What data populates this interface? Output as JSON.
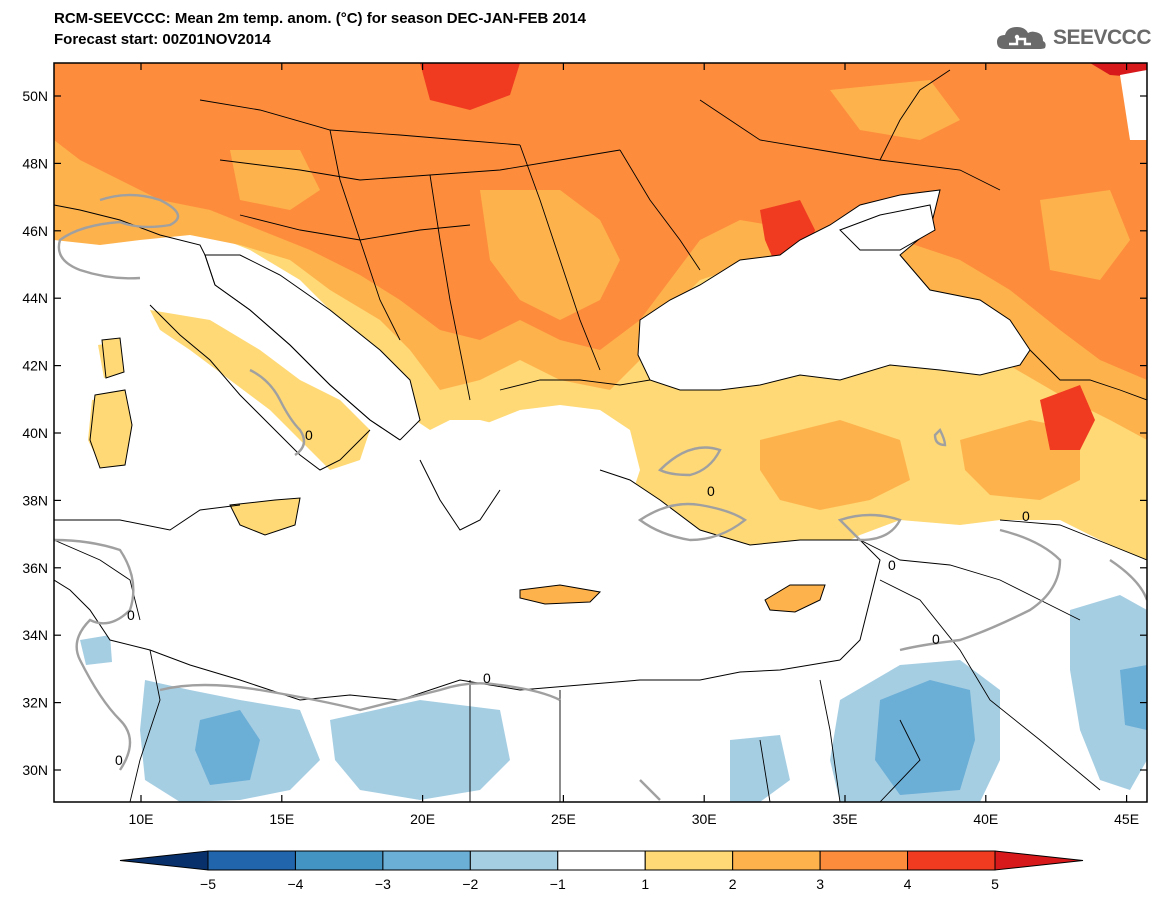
{
  "title_line1": "RCM-SEEVCCC: Mean 2m temp. anom. (°C) for season DEC-JAN-FEB 2014",
  "title_line2": "Forecast start: 00Z01NOV2014",
  "logo_text": "SEEVCCC",
  "map": {
    "lat_ticks": [
      "50N",
      "48N",
      "46N",
      "44N",
      "42N",
      "40N",
      "38N",
      "36N",
      "34N",
      "32N",
      "30N"
    ],
    "lon_ticks": [
      "10E",
      "15E",
      "20E",
      "25E",
      "30E",
      "35E",
      "40E",
      "45E"
    ],
    "contour_label": "0"
  },
  "colorbar": {
    "labels": [
      "-5",
      "-4",
      "-3",
      "-2",
      "-1",
      "1",
      "2",
      "3",
      "4",
      "5"
    ],
    "colors": [
      "#08306b",
      "#2166ac",
      "#4393c3",
      "#6baed6",
      "#a6cee3",
      "#ffffff",
      "#fed976",
      "#feb24c",
      "#fd8d3c",
      "#f03b20",
      "#d7191c"
    ]
  },
  "colors": {
    "anom_1_2": "#fed976",
    "anom_2_3": "#feb24c",
    "anom_3_4": "#fd8d3c",
    "anom_4_5": "#f03b20",
    "anom_neg1_neg2": "#a6cee3",
    "anom_neg2_neg3": "#6baed6",
    "sea": "#ffffff",
    "zero_contour": "#a0a0a0"
  }
}
